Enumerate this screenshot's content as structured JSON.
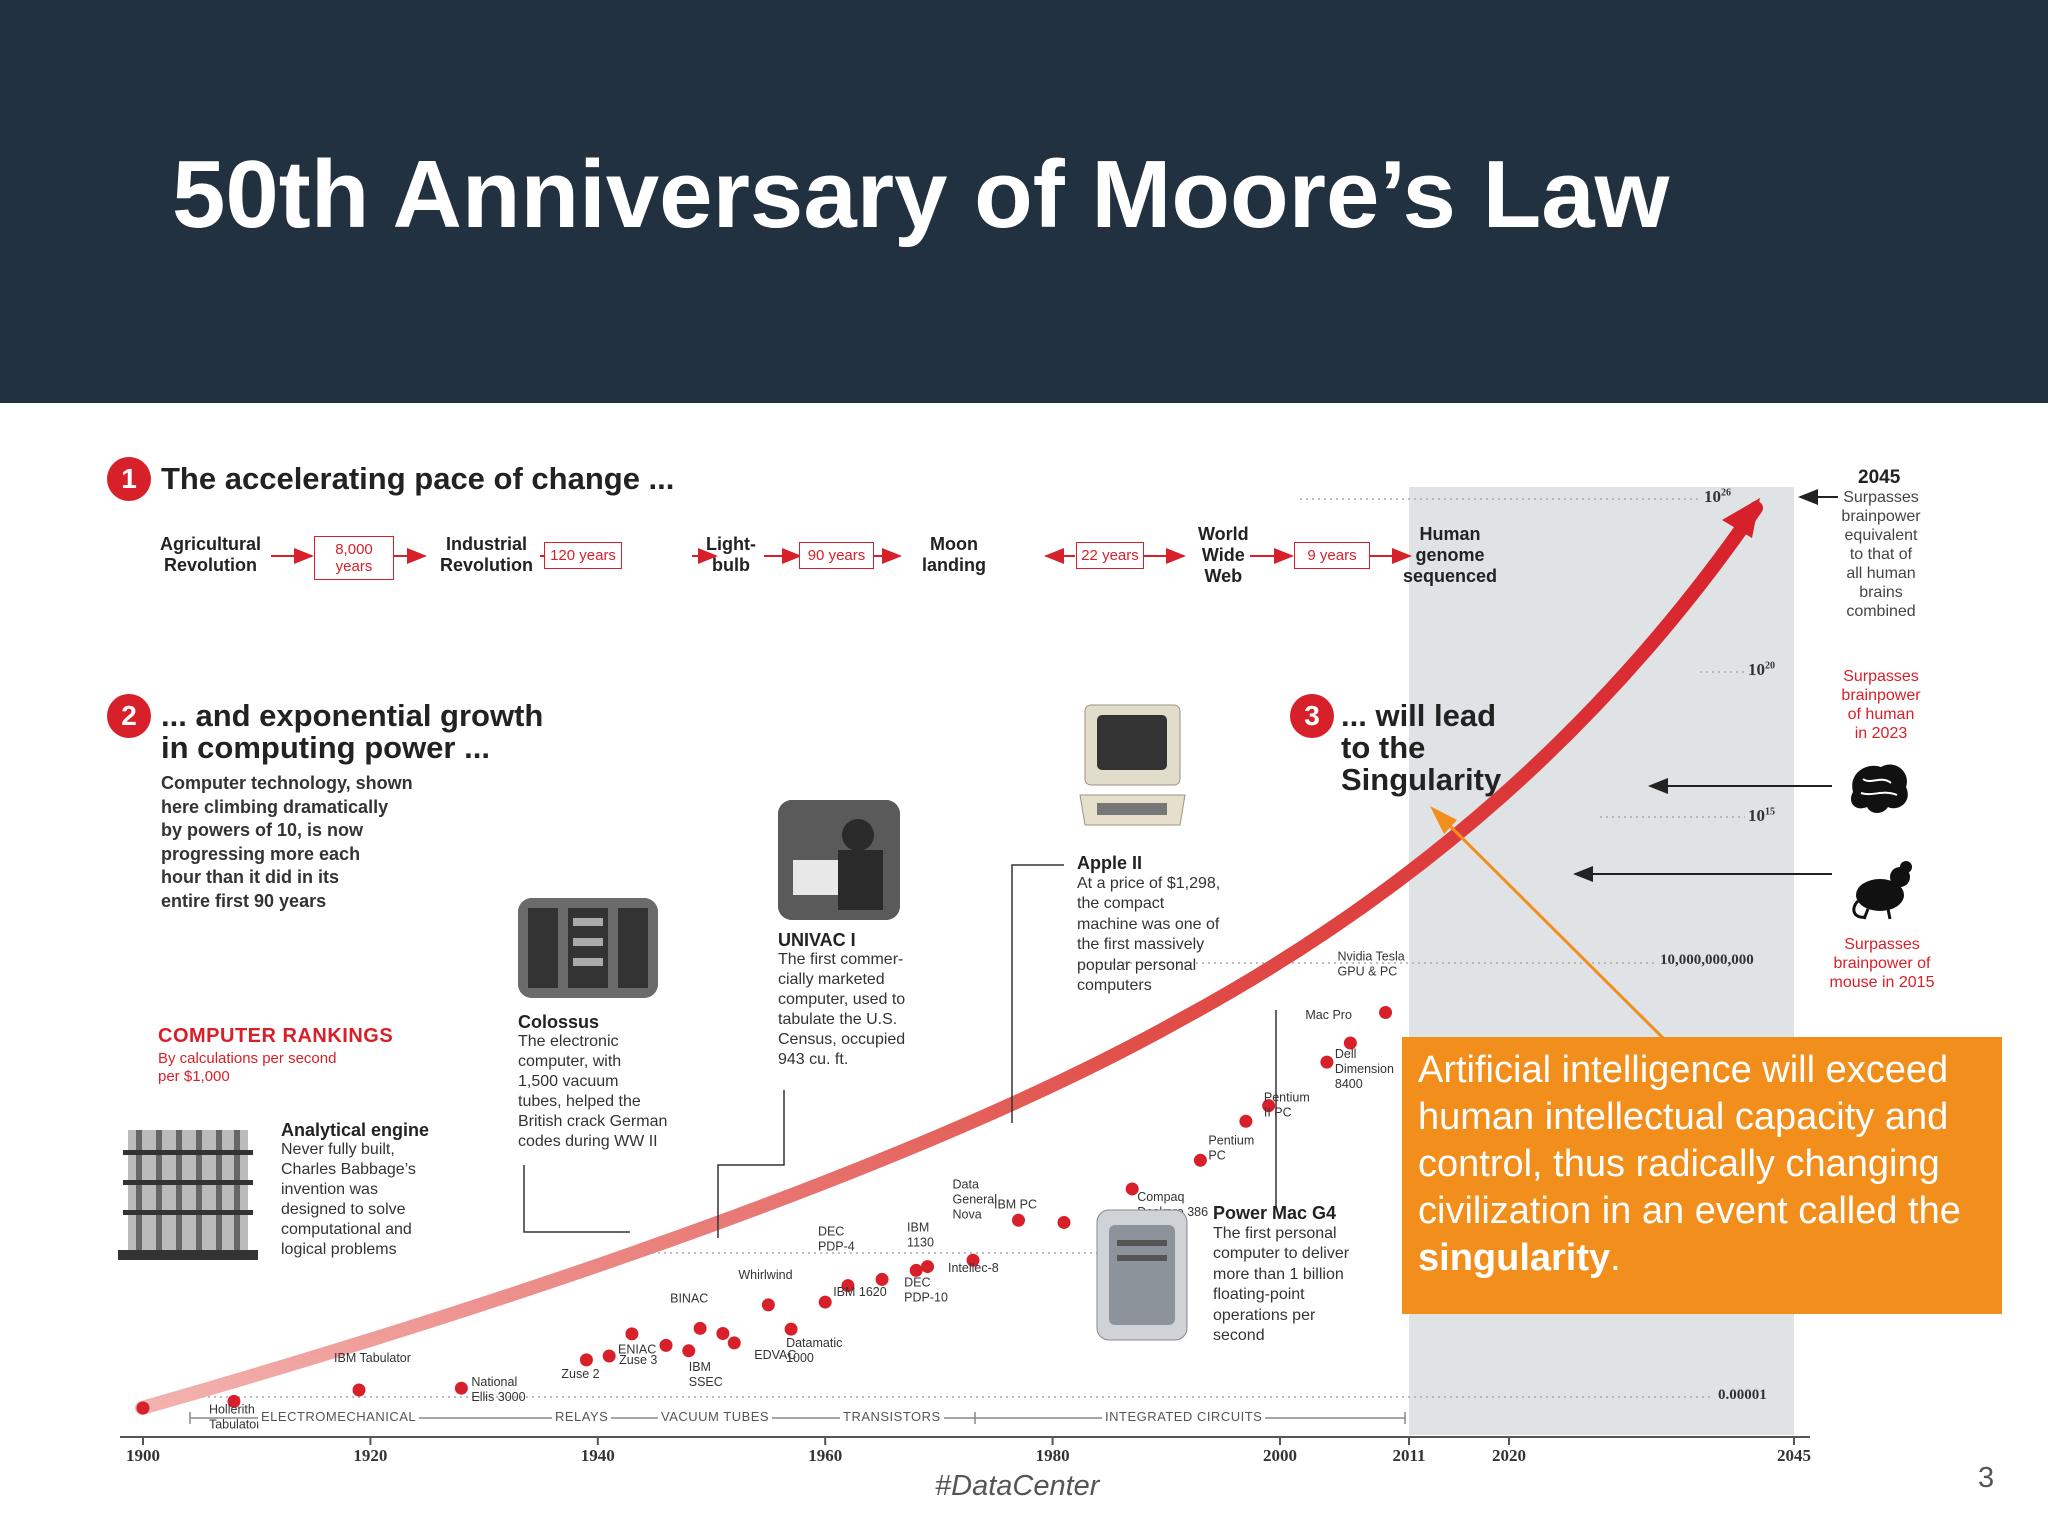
{
  "slide": {
    "title": "50th Anniversary of Moore’s Law",
    "footer_tag": "#DataCenter",
    "page_number": "3",
    "colors": {
      "header": "#22313f",
      "accent_red": "#d7202a",
      "callout": "#f28e1c",
      "future_shade": "#dfe3e6"
    }
  },
  "section1": {
    "badge": "1",
    "title": "The accelerating pace of change ...",
    "milestones": [
      {
        "label_lines": [
          "Agricultural",
          "Revolution"
        ]
      },
      {
        "label_lines": [
          "Industrial",
          "Revolution"
        ]
      },
      {
        "label_lines": [
          "Light-",
          "bulb"
        ]
      },
      {
        "label_lines": [
          "Moon",
          "landing"
        ]
      },
      {
        "label_lines": [
          "World",
          "Wide",
          "Web"
        ]
      },
      {
        "label_lines": [
          "Human",
          "genome",
          "sequenced"
        ]
      }
    ],
    "gaps": [
      {
        "lines": [
          "8,000",
          "years"
        ]
      },
      {
        "lines": [
          "120 years"
        ]
      },
      {
        "lines": [
          "90 years"
        ]
      },
      {
        "lines": [
          "22 years"
        ]
      },
      {
        "lines": [
          "9 years"
        ]
      }
    ]
  },
  "section2": {
    "badge": "2",
    "title_lines": [
      "... and exponential growth",
      "in computing power ..."
    ],
    "body_lines": [
      "Computer technology, shown",
      "here climbing dramatically",
      "by powers of 10, is now",
      "progressing more each",
      "hour than it did in its",
      "entire first 90 years"
    ]
  },
  "section3": {
    "badge": "3",
    "title_lines": [
      "... will lead",
      "to the",
      "Singularity"
    ]
  },
  "rankings": {
    "title": "COMPUTER RANKINGS",
    "subtitle_lines": [
      "By calculations per second",
      "per $1,000"
    ]
  },
  "annotations": {
    "analytical": {
      "title": "Analytical engine",
      "lines": [
        "Never fully built,",
        "Charles Babbage’s",
        "invention was",
        "designed to solve",
        "computational and",
        "logical problems"
      ]
    },
    "colossus": {
      "title": "Colossus",
      "lines": [
        "The electronic",
        "computer, with",
        "1,500 vacuum",
        "tubes, helped the",
        "British crack German",
        "codes during WW II"
      ]
    },
    "univac": {
      "title": "UNIVAC I",
      "lines": [
        "The first commer-",
        "cially marketed",
        "computer, used to",
        "tabulate the U.S.",
        "Census, occupied",
        "943 cu. ft."
      ]
    },
    "apple": {
      "title": "Apple II",
      "lines": [
        "At a price of $1,298,",
        "the compact",
        "machine was one of",
        "the first massively",
        "popular personal",
        "computers"
      ]
    },
    "powermac": {
      "title": "Power Mac G4",
      "lines": [
        "The first personal",
        "computer to deliver",
        "more than 1 billion",
        "floating-point",
        "operations per",
        "second"
      ]
    }
  },
  "right_notes": {
    "year_2045": "2045",
    "top_lines": [
      "Surpasses",
      "brainpower",
      "equivalent",
      "to that of",
      "all human",
      "brains",
      "combined"
    ],
    "human_lines": [
      "Surpasses",
      "brainpower",
      "of human",
      "in 2023"
    ],
    "mouse_lines": [
      "Surpasses",
      "brainpower of",
      "mouse in 2015"
    ],
    "y_labels": {
      "e26": "10",
      "e26_exp": "26",
      "e20": "10",
      "e20_exp": "20",
      "e15": "10",
      "e15_exp": "15",
      "ten_billion": "10,000,000,000",
      "small": "0.00001"
    }
  },
  "chart_data": {
    "type": "scatter",
    "title": "",
    "xlabel": "",
    "ylabel": "",
    "x_ticks": [
      "1900",
      "1920",
      "1940",
      "1960",
      "1980",
      "2000",
      "2011",
      "2020",
      "2045"
    ],
    "eras": [
      "ELECTROMECHANICAL",
      "RELAYS",
      "VACUUM TUBES",
      "TRANSISTORS",
      "INTEGRATED CIRCUITS"
    ],
    "points": [
      {
        "label_lines": [],
        "year": 1900
      },
      {
        "label_lines": [
          "Hollerith",
          "Tabulator"
        ],
        "year": 1908
      },
      {
        "label_lines": [
          "IBM Tabulator"
        ],
        "year": 1919
      },
      {
        "label_lines": [
          "National",
          "Ellis 3000"
        ],
        "year": 1928
      },
      {
        "label_lines": [
          "Zuse 2"
        ],
        "year": 1939
      },
      {
        "label_lines": [
          "Zuse 3"
        ],
        "year": 1941
      },
      {
        "label_lines": [],
        "year": 1943
      },
      {
        "label_lines": [
          "ENIAC"
        ],
        "year": 1946
      },
      {
        "label_lines": [
          "IBM",
          "SSEC"
        ],
        "year": 1948
      },
      {
        "label_lines": [
          "BINAC"
        ],
        "year": 1949
      },
      {
        "label_lines": [],
        "year": 1951
      },
      {
        "label_lines": [
          "EDVAC"
        ],
        "year": 1952
      },
      {
        "label_lines": [
          "Whirlwind"
        ],
        "year": 1955
      },
      {
        "label_lines": [
          "Datamatic",
          "1000"
        ],
        "year": 1957
      },
      {
        "label_lines": [
          "IBM 1620"
        ],
        "year": 1960
      },
      {
        "label_lines": [
          "DEC",
          "PDP-4"
        ],
        "year": 1962
      },
      {
        "label_lines": [
          "IBM",
          "1130"
        ],
        "year": 1965
      },
      {
        "label_lines": [
          "DEC",
          "PDP-10"
        ],
        "year": 1968
      },
      {
        "label_lines": [
          "Data",
          "General",
          "Nova"
        ],
        "year": 1969
      },
      {
        "label_lines": [
          "Intellec-8"
        ],
        "year": 1973
      },
      {
        "label_lines": [],
        "year": 1977
      },
      {
        "label_lines": [
          "IBM PC"
        ],
        "year": 1981
      },
      {
        "label_lines": [
          "Compaq",
          "Deskpro 386"
        ],
        "year": 1987
      },
      {
        "label_lines": [
          "Pentium",
          "PC"
        ],
        "year": 1993
      },
      {
        "label_lines": [
          "Pentium",
          "II PC"
        ],
        "year": 1997
      },
      {
        "label_lines": [],
        "year": 1999
      },
      {
        "label_lines": [
          "Dell",
          "Dimension",
          "8400"
        ],
        "year": 2004
      },
      {
        "label_lines": [
          "Mac Pro"
        ],
        "year": 2006
      },
      {
        "label_lines": [
          "Nvidia Tesla",
          "GPU & PC"
        ],
        "year": 2009
      }
    ]
  },
  "callout": {
    "text": "Artificial intelligence will exceed human intellectual capacity and control, thus radically changing civilization in an event called the",
    "bold_word": "singularity",
    "end": "."
  }
}
